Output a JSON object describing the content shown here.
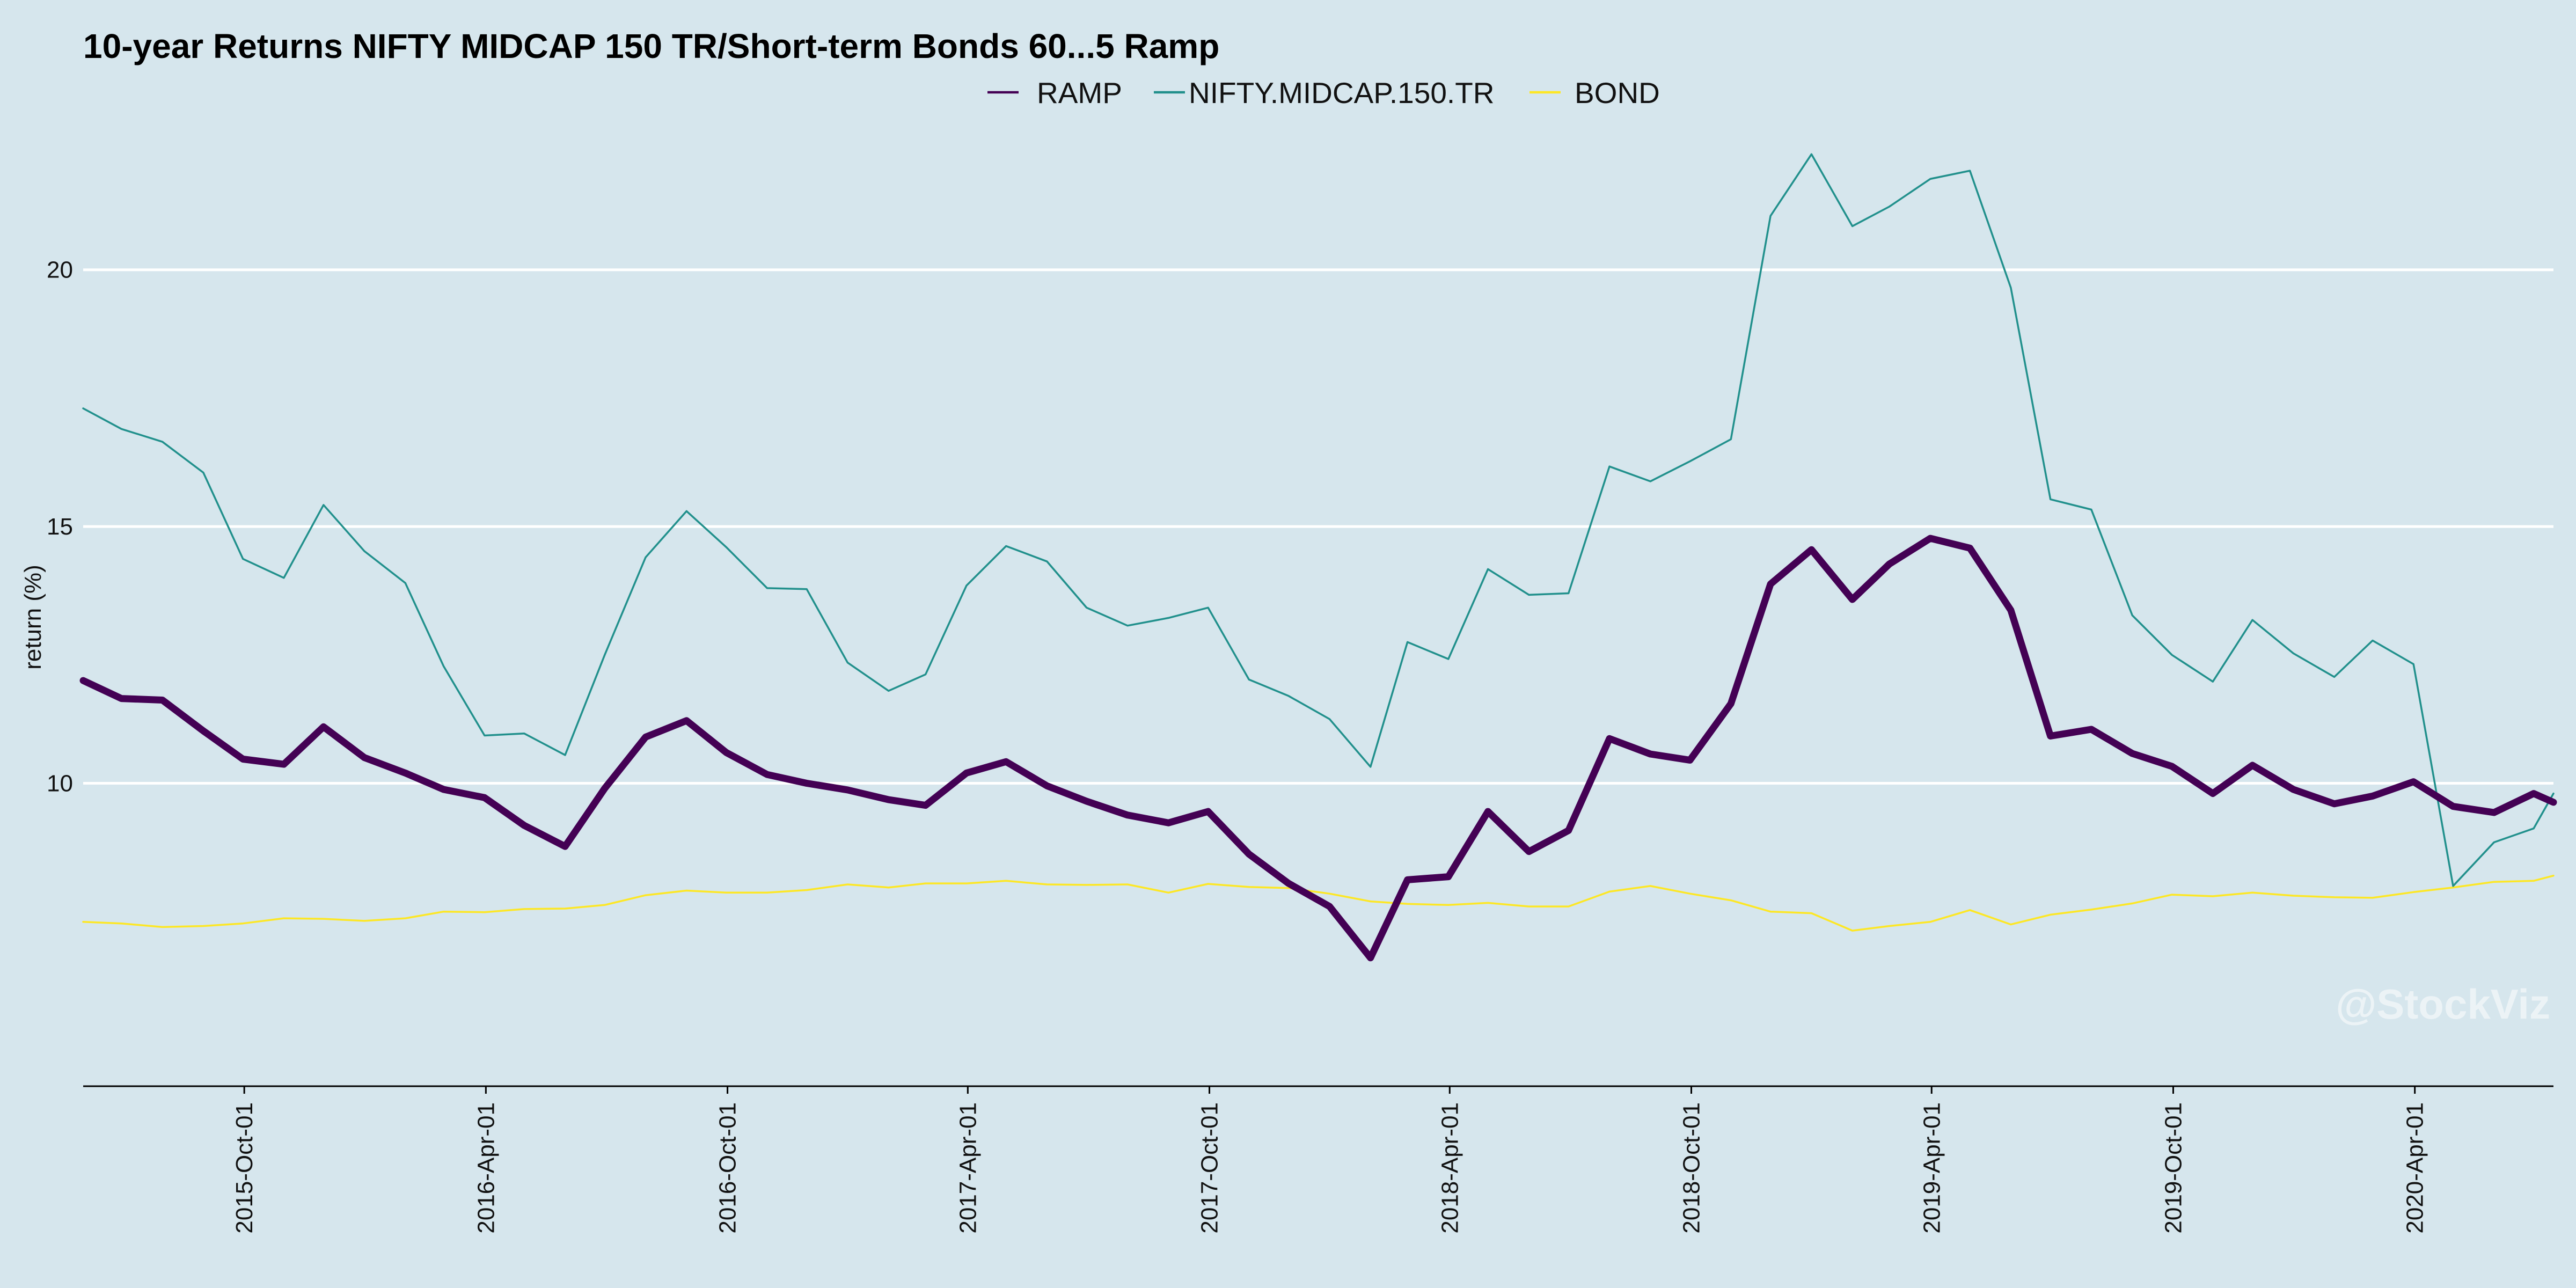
{
  "chart_data": {
    "type": "line",
    "title": "10-year Returns NIFTY MIDCAP 150 TR/Short-term Bonds 60...5 Ramp",
    "ylabel": "return (%)",
    "xlabel": "",
    "watermark": "@StockViz",
    "legend_position": "top",
    "grid": true,
    "ylim": [
      4.1,
      24.0
    ],
    "y_ticks": [
      10,
      15,
      20
    ],
    "x_start": "2015-06-01",
    "x_end": "2020-07-15",
    "x_ticks": [
      "2015-Oct-01",
      "2016-Apr-01",
      "2016-Oct-01",
      "2017-Apr-01",
      "2017-Oct-01",
      "2018-Apr-01",
      "2018-Oct-01",
      "2019-Apr-01",
      "2019-Oct-01",
      "2020-Apr-01"
    ],
    "x": [
      "2015-06-01",
      "2015-06-30",
      "2015-07-31",
      "2015-08-31",
      "2015-09-30",
      "2015-10-31",
      "2015-11-30",
      "2015-12-31",
      "2016-01-31",
      "2016-02-29",
      "2016-03-31",
      "2016-04-30",
      "2016-05-31",
      "2016-06-30",
      "2016-07-31",
      "2016-08-31",
      "2016-09-30",
      "2016-10-31",
      "2016-11-30",
      "2016-12-31",
      "2017-01-31",
      "2017-02-28",
      "2017-03-31",
      "2017-04-30",
      "2017-05-31",
      "2017-06-30",
      "2017-07-31",
      "2017-08-31",
      "2017-09-30",
      "2017-10-31",
      "2017-11-30",
      "2017-12-31",
      "2018-01-31",
      "2018-02-28",
      "2018-03-31",
      "2018-04-30",
      "2018-05-31",
      "2018-06-30",
      "2018-07-31",
      "2018-08-31",
      "2018-09-30",
      "2018-10-31",
      "2018-11-30",
      "2018-12-31",
      "2019-01-31",
      "2019-02-28",
      "2019-03-31",
      "2019-04-30",
      "2019-05-31",
      "2019-06-30",
      "2019-07-31",
      "2019-08-31",
      "2019-09-30",
      "2019-10-31",
      "2019-11-30",
      "2019-12-31",
      "2020-01-31",
      "2020-02-29",
      "2020-03-31",
      "2020-04-30",
      "2020-05-31",
      "2020-06-30",
      "2020-07-15"
    ],
    "series": [
      {
        "name": "RAMP",
        "color": "#440154",
        "values": [
          12.0,
          11.65,
          11.62,
          11.02,
          10.47,
          10.37,
          11.1,
          10.5,
          10.2,
          9.88,
          9.72,
          9.18,
          8.77,
          9.9,
          10.9,
          11.22,
          10.6,
          10.17,
          10.0,
          9.87,
          9.68,
          9.57,
          10.2,
          10.42,
          9.95,
          9.65,
          9.38,
          9.23,
          9.45,
          8.62,
          8.05,
          7.6,
          6.6,
          8.12,
          8.18,
          9.45,
          8.67,
          9.08,
          10.87,
          10.57,
          10.45,
          11.55,
          13.88,
          14.55,
          13.58,
          14.27,
          14.77,
          14.58,
          13.37,
          10.92,
          11.05,
          10.58,
          10.33,
          9.8,
          10.35,
          9.88,
          9.6,
          9.75,
          10.03,
          9.55,
          9.43,
          9.8,
          9.63
        ]
      },
      {
        "name": "NIFTY.MIDCAP.150.TR",
        "color": "#21908c",
        "values": [
          17.3,
          16.9,
          16.65,
          16.05,
          14.37,
          14.0,
          15.42,
          14.52,
          13.9,
          12.28,
          10.93,
          10.97,
          10.55,
          12.5,
          14.4,
          15.3,
          14.6,
          13.8,
          13.78,
          12.35,
          11.8,
          12.12,
          13.85,
          14.62,
          14.32,
          13.42,
          13.07,
          13.22,
          13.42,
          12.02,
          11.7,
          11.25,
          10.32,
          12.75,
          12.42,
          14.17,
          13.67,
          13.7,
          16.17,
          15.88,
          16.27,
          16.7,
          21.05,
          22.25,
          20.85,
          21.23,
          21.77,
          21.93,
          19.65,
          15.53,
          15.33,
          13.27,
          12.5,
          11.98,
          13.18,
          12.53,
          12.07,
          12.78,
          12.32,
          8.0,
          8.85,
          9.12,
          9.8
        ]
      },
      {
        "name": "BOND",
        "color": "#fde725",
        "values": [
          7.3,
          7.27,
          7.2,
          7.22,
          7.27,
          7.37,
          7.36,
          7.32,
          7.37,
          7.5,
          7.49,
          7.55,
          7.56,
          7.63,
          7.82,
          7.91,
          7.87,
          7.87,
          7.92,
          8.03,
          7.97,
          8.05,
          8.05,
          8.1,
          8.03,
          8.02,
          8.03,
          7.87,
          8.04,
          7.98,
          7.96,
          7.85,
          7.7,
          7.65,
          7.63,
          7.67,
          7.6,
          7.6,
          7.89,
          8.0,
          7.85,
          7.72,
          7.5,
          7.47,
          7.13,
          7.22,
          7.3,
          7.53,
          7.25,
          7.44,
          7.54,
          7.66,
          7.83,
          7.8,
          7.87,
          7.81,
          7.78,
          7.77,
          7.88,
          7.97,
          8.08,
          8.1,
          8.2
        ]
      }
    ]
  }
}
